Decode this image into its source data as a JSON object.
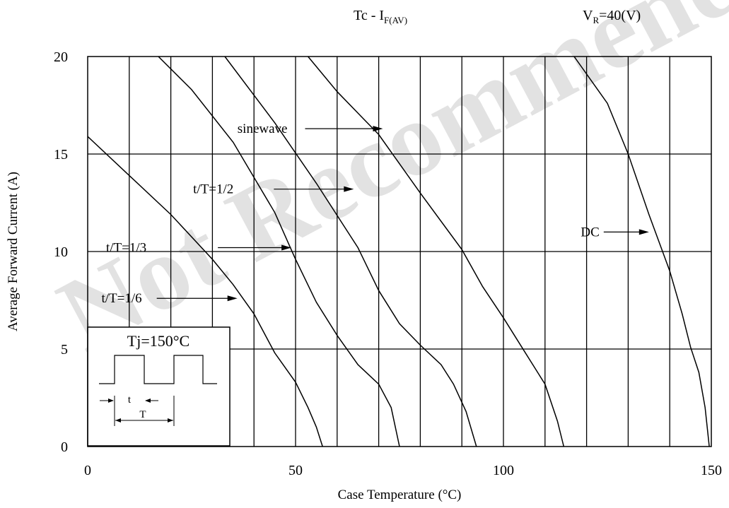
{
  "header": {
    "title_main": "Tc - I",
    "title_sub": "F(AV)",
    "condition_main": "V",
    "condition_sub": "R",
    "condition_rest": "=40(V)"
  },
  "watermark": "Not Recommended",
  "chart_data": {
    "type": "line",
    "xlabel": "Case Temperature (°C)",
    "ylabel": "Average Forward Current (A)",
    "xlim": [
      0,
      150
    ],
    "ylim": [
      0,
      20
    ],
    "x_ticks": [
      0,
      50,
      100,
      150
    ],
    "y_ticks": [
      0,
      5,
      10,
      15,
      20
    ],
    "vertical_grid": [
      10,
      20,
      30,
      40,
      50,
      60,
      70,
      80,
      90,
      100,
      110,
      120,
      130,
      140
    ],
    "horizontal_grid": [
      5,
      10,
      15
    ],
    "grid": true,
    "series": [
      {
        "name": "t/T=1/6",
        "points": [
          [
            0,
            15.9
          ],
          [
            10,
            13.9
          ],
          [
            20,
            11.9
          ],
          [
            30,
            9.6
          ],
          [
            35,
            8.3
          ],
          [
            40,
            6.8
          ],
          [
            45,
            4.8
          ],
          [
            50,
            3.3
          ],
          [
            53,
            2.0
          ],
          [
            55,
            1.0
          ],
          [
            56.5,
            0
          ]
        ]
      },
      {
        "name": "t/T=1/3",
        "points": [
          [
            17,
            20
          ],
          [
            25,
            18.3
          ],
          [
            35,
            15.6
          ],
          [
            45,
            12.0
          ],
          [
            50,
            9.6
          ],
          [
            55,
            7.4
          ],
          [
            60,
            5.7
          ],
          [
            65,
            4.2
          ],
          [
            70,
            3.2
          ],
          [
            73,
            2.0
          ],
          [
            75,
            0
          ]
        ]
      },
      {
        "name": "t/T=1/2",
        "points": [
          [
            33,
            20
          ],
          [
            45,
            16.6
          ],
          [
            55,
            13.5
          ],
          [
            65,
            10.2
          ],
          [
            70,
            8.0
          ],
          [
            75,
            6.3
          ],
          [
            80,
            5.2
          ],
          [
            85,
            4.2
          ],
          [
            88,
            3.2
          ],
          [
            91,
            1.8
          ],
          [
            93.5,
            0
          ]
        ]
      },
      {
        "name": "sinewave",
        "points": [
          [
            53,
            20
          ],
          [
            60,
            18.2
          ],
          [
            70,
            16.0
          ],
          [
            80,
            13.0
          ],
          [
            90,
            10.1
          ],
          [
            95,
            8.2
          ],
          [
            100,
            6.6
          ],
          [
            105,
            4.9
          ],
          [
            110,
            3.2
          ],
          [
            113,
            1.3
          ],
          [
            114.5,
            0
          ]
        ]
      },
      {
        "name": "DC",
        "points": [
          [
            117,
            20
          ],
          [
            125,
            17.6
          ],
          [
            130,
            15.0
          ],
          [
            135,
            11.9
          ],
          [
            140,
            9.0
          ],
          [
            143,
            6.8
          ],
          [
            145,
            5.1
          ],
          [
            147,
            3.8
          ],
          [
            148.5,
            2.0
          ],
          [
            149.5,
            0
          ]
        ]
      }
    ],
    "annotations": [
      {
        "text": "sinewave",
        "target": [
          71,
          16.3
        ]
      },
      {
        "text": "t/T=1/2",
        "target": [
          64,
          13.2
        ]
      },
      {
        "text": "DC",
        "target": [
          135,
          11.0
        ]
      },
      {
        "text": "t/T=1/3",
        "target": [
          49,
          10.2
        ]
      },
      {
        "text": "t/T=1/6",
        "target": [
          36,
          7.6
        ]
      }
    ]
  },
  "inset": {
    "title": "Tj=150°C",
    "label_t": "t",
    "label_T": "T"
  }
}
